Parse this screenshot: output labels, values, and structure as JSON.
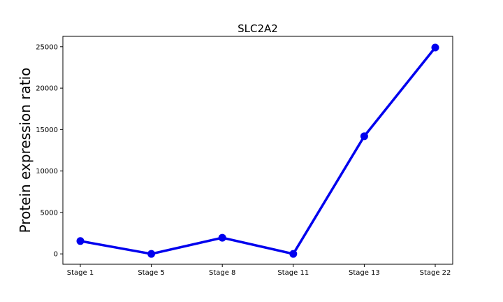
{
  "chart_data": {
    "type": "line",
    "title": "SLC2A2",
    "xlabel": "",
    "ylabel": "Protein expression ratio",
    "categories": [
      "Stage 1",
      "Stage 5",
      "Stage 8",
      "Stage 11",
      "Stage 13",
      "Stage 22"
    ],
    "series": [
      {
        "values": [
          1550,
          0,
          1950,
          0,
          14200,
          24900
        ],
        "color": "#0000ee"
      }
    ],
    "yticks": [
      0,
      5000,
      10000,
      15000,
      20000,
      25000
    ],
    "ylim": [
      -1250,
      26250
    ],
    "grid": false,
    "legend": "none"
  }
}
